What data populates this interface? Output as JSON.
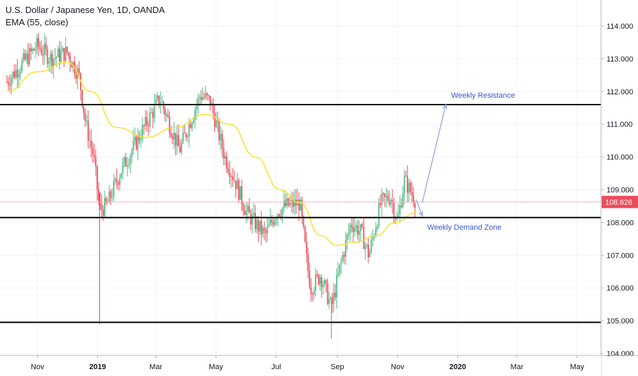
{
  "legend": {
    "title": "U.S. Dollar / Japanese Yen, 1D, OANDA",
    "indicator": "EMA (55, close)"
  },
  "colors": {
    "up": "#53b987",
    "down": "#eb4d5c",
    "ema": "#f7e32b",
    "level_line": "#000000",
    "annotation": "#3a55c9",
    "arrow": "#8fa6d9",
    "last_price_bg": "#eb4d5c",
    "last_price_line": "#f4b5b8",
    "grid": "#f0f3fa"
  },
  "annotations": {
    "resistance_label": "Weekly Resistance",
    "demand_label": "Weekly Demand Zone"
  },
  "chart_data": {
    "type": "candlestick",
    "title": "U.S. Dollar / Japanese Yen, 1D, OANDA",
    "indicator": "EMA (55, close)",
    "xlabel": "",
    "ylabel": "",
    "grid": true,
    "y_ticks": [
      "104.000",
      "105.000",
      "106.000",
      "107.000",
      "108.000",
      "109.000",
      "110.000",
      "111.000",
      "112.000",
      "113.000",
      "114.000"
    ],
    "x_ticks": [
      "Nov",
      "2019",
      "Mar",
      "May",
      "Jul",
      "Sep",
      "Nov",
      "2020",
      "Mar",
      "May"
    ],
    "x_tick_bold": [
      false,
      true,
      false,
      false,
      false,
      false,
      false,
      true,
      false,
      false
    ],
    "ylim": [
      103.9,
      115.0
    ],
    "last_price": "108.626",
    "horizontal_levels": [
      111.6,
      108.15,
      104.95
    ],
    "price_path": {
      "dates": [
        "2018-10-01",
        "2018-10-15",
        "2018-11-01",
        "2018-11-15",
        "2018-12-01",
        "2018-12-13",
        "2018-12-20",
        "2018-12-28",
        "2019-01-03",
        "2019-01-10",
        "2019-01-25",
        "2019-02-10",
        "2019-02-28",
        "2019-03-05",
        "2019-03-25",
        "2019-04-15",
        "2019-04-25",
        "2019-05-10",
        "2019-05-20",
        "2019-06-01",
        "2019-06-20",
        "2019-07-01",
        "2019-07-10",
        "2019-07-25",
        "2019-08-01",
        "2019-08-05",
        "2019-08-15",
        "2019-08-26",
        "2019-09-05",
        "2019-09-15",
        "2019-09-25",
        "2019-10-03",
        "2019-10-15",
        "2019-10-25",
        "2019-11-01",
        "2019-11-08",
        "2019-11-15",
        "2019-11-20"
      ],
      "closes": [
        112.3,
        112.8,
        113.4,
        113.0,
        113.2,
        112.5,
        111.0,
        110.0,
        108.4,
        108.5,
        109.6,
        110.5,
        111.5,
        111.8,
        110.2,
        111.9,
        111.7,
        110.0,
        109.3,
        108.3,
        107.6,
        108.3,
        108.5,
        108.6,
        106.8,
        106.0,
        106.4,
        105.4,
        106.8,
        108.0,
        107.7,
        107.0,
        108.6,
        108.8,
        108.0,
        109.3,
        108.9,
        108.626
      ]
    },
    "ema_path": {
      "dates": [
        "2018-10-01",
        "2018-11-01",
        "2018-12-01",
        "2018-12-25",
        "2019-01-20",
        "2019-02-20",
        "2019-03-20",
        "2019-04-20",
        "2019-05-15",
        "2019-06-10",
        "2019-07-05",
        "2019-07-25",
        "2019-08-15",
        "2019-09-01",
        "2019-09-20",
        "2019-10-10",
        "2019-10-30",
        "2019-11-20"
      ],
      "values": [
        112.0,
        112.6,
        112.9,
        112.0,
        110.9,
        110.6,
        110.9,
        111.3,
        111.0,
        110.0,
        109.0,
        108.6,
        107.6,
        107.3,
        107.4,
        107.6,
        108.0,
        108.3
      ]
    },
    "annotation_arrows": [
      {
        "from": [
          "2019-11-20",
          108.7
        ],
        "to": [
          "2019-11-26",
          108.2
        ]
      },
      {
        "from": [
          "2019-11-26",
          108.6
        ],
        "to": [
          "2019-12-20",
          111.6
        ]
      }
    ]
  }
}
